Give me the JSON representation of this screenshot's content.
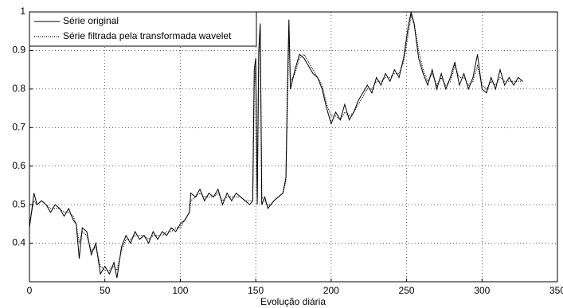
{
  "chart_data": {
    "type": "line",
    "x_label": "Evolução diária",
    "x": [
      0,
      2,
      3,
      5,
      8,
      11,
      14,
      17,
      20,
      23,
      26,
      29,
      31,
      33,
      35,
      38,
      41,
      44,
      47,
      50,
      53,
      56,
      58,
      61,
      64,
      67,
      70,
      73,
      76,
      79,
      82,
      85,
      88,
      91,
      94,
      97,
      100,
      103,
      106,
      107,
      110,
      113,
      116,
      119,
      122,
      125,
      128,
      131,
      134,
      137,
      140,
      143,
      146,
      148,
      149,
      150,
      151,
      152,
      153,
      154,
      156,
      158,
      160,
      162,
      165,
      168,
      170,
      171,
      172,
      173,
      176,
      179,
      182,
      185,
      188,
      191,
      194,
      197,
      200,
      203,
      206,
      209,
      212,
      215,
      218,
      221,
      224,
      227,
      230,
      233,
      236,
      239,
      242,
      245,
      248,
      251,
      253,
      255,
      258,
      261,
      264,
      267,
      270,
      273,
      276,
      279,
      282,
      285,
      288,
      291,
      294,
      297,
      300,
      303,
      306,
      309,
      312,
      315,
      318,
      321,
      324,
      327
    ],
    "series": [
      {
        "name": "Série original",
        "color": "#000000",
        "dashed": false,
        "values": [
          0.44,
          0.5,
          0.53,
          0.5,
          0.51,
          0.5,
          0.48,
          0.5,
          0.49,
          0.47,
          0.49,
          0.46,
          0.45,
          0.36,
          0.44,
          0.43,
          0.37,
          0.4,
          0.32,
          0.34,
          0.32,
          0.35,
          0.31,
          0.39,
          0.42,
          0.4,
          0.43,
          0.41,
          0.42,
          0.4,
          0.43,
          0.41,
          0.43,
          0.42,
          0.44,
          0.43,
          0.45,
          0.46,
          0.48,
          0.53,
          0.52,
          0.54,
          0.51,
          0.53,
          0.52,
          0.54,
          0.5,
          0.53,
          0.51,
          0.53,
          0.52,
          0.51,
          0.5,
          0.51,
          0.85,
          0.88,
          0.5,
          0.9,
          0.97,
          0.5,
          0.52,
          0.49,
          0.5,
          0.51,
          0.52,
          0.53,
          0.57,
          0.8,
          0.98,
          0.8,
          0.85,
          0.89,
          0.88,
          0.86,
          0.84,
          0.83,
          0.8,
          0.75,
          0.71,
          0.74,
          0.72,
          0.76,
          0.72,
          0.74,
          0.77,
          0.79,
          0.81,
          0.79,
          0.83,
          0.81,
          0.84,
          0.82,
          0.85,
          0.83,
          0.88,
          0.96,
          1.0,
          0.97,
          0.88,
          0.84,
          0.81,
          0.85,
          0.8,
          0.84,
          0.8,
          0.83,
          0.87,
          0.81,
          0.84,
          0.8,
          0.83,
          0.89,
          0.8,
          0.79,
          0.83,
          0.8,
          0.85,
          0.81,
          0.83,
          0.81,
          0.83,
          0.82
        ]
      },
      {
        "name": "Série filtrada pela transformada wavelet",
        "color": "#000000",
        "dashed": true,
        "values": [
          0.45,
          0.49,
          0.51,
          0.5,
          0.51,
          0.5,
          0.49,
          0.49,
          0.49,
          0.48,
          0.48,
          0.47,
          0.45,
          0.4,
          0.43,
          0.42,
          0.38,
          0.39,
          0.34,
          0.33,
          0.33,
          0.34,
          0.33,
          0.38,
          0.41,
          0.41,
          0.42,
          0.42,
          0.42,
          0.41,
          0.42,
          0.42,
          0.42,
          0.43,
          0.43,
          0.44,
          0.44,
          0.46,
          0.48,
          0.51,
          0.52,
          0.53,
          0.52,
          0.52,
          0.52,
          0.53,
          0.51,
          0.52,
          0.52,
          0.52,
          0.52,
          0.51,
          0.51,
          0.51,
          0.8,
          0.86,
          0.52,
          0.88,
          0.95,
          0.52,
          0.51,
          0.5,
          0.5,
          0.51,
          0.52,
          0.53,
          0.56,
          0.75,
          0.95,
          0.82,
          0.84,
          0.88,
          0.89,
          0.87,
          0.85,
          0.83,
          0.81,
          0.76,
          0.73,
          0.73,
          0.72,
          0.74,
          0.73,
          0.74,
          0.76,
          0.78,
          0.8,
          0.8,
          0.82,
          0.82,
          0.83,
          0.83,
          0.84,
          0.84,
          0.87,
          0.94,
          0.99,
          0.97,
          0.9,
          0.85,
          0.82,
          0.84,
          0.81,
          0.83,
          0.81,
          0.82,
          0.86,
          0.83,
          0.83,
          0.81,
          0.82,
          0.86,
          0.81,
          0.8,
          0.82,
          0.81,
          0.83,
          0.82,
          0.82,
          0.82,
          0.82,
          0.82
        ]
      }
    ],
    "xlim": [
      0,
      350
    ],
    "xticks": [
      0,
      50,
      100,
      150,
      200,
      250,
      300,
      350
    ],
    "ylim": [
      0.3,
      1
    ],
    "yticks": [
      0.4,
      0.5,
      0.6,
      0.7,
      0.8,
      0.9,
      1
    ],
    "grid": true,
    "legend": "upper left"
  }
}
